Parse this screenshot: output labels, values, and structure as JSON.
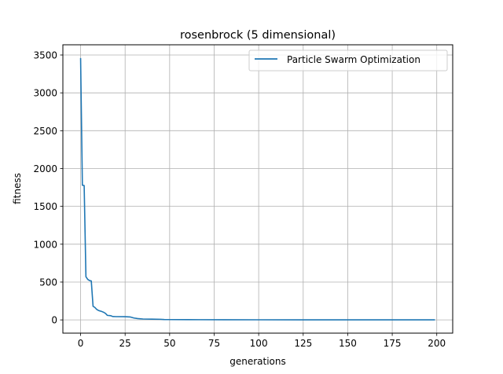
{
  "colors": {
    "series": "#1f77b4",
    "grid": "#b0b0b0",
    "axis": "#000000",
    "legend_border": "#cccccc"
  },
  "chart_data": {
    "type": "line",
    "title": "rosenbrock (5 dimensional)",
    "xlabel": "generations",
    "ylabel": "fitness",
    "xlim": [
      -9.95,
      208.95
    ],
    "ylim": [
      -175,
      3635
    ],
    "xticks": [
      0,
      25,
      50,
      75,
      100,
      125,
      150,
      175,
      200
    ],
    "yticks": [
      0,
      500,
      1000,
      1500,
      2000,
      2500,
      3000,
      3500
    ],
    "grid": true,
    "legend_position": "top-right",
    "series": [
      {
        "name": "Particle Swarm Optimization",
        "points": [
          [
            0,
            3460
          ],
          [
            1,
            1780
          ],
          [
            2,
            1775
          ],
          [
            3,
            570
          ],
          [
            4,
            535
          ],
          [
            5,
            520
          ],
          [
            6,
            515
          ],
          [
            7,
            180
          ],
          [
            8,
            165
          ],
          [
            9,
            140
          ],
          [
            10,
            125
          ],
          [
            12,
            110
          ],
          [
            13,
            100
          ],
          [
            14,
            85
          ],
          [
            15,
            60
          ],
          [
            17,
            55
          ],
          [
            18,
            45
          ],
          [
            20,
            43
          ],
          [
            25,
            42
          ],
          [
            28,
            38
          ],
          [
            30,
            25
          ],
          [
            32,
            18
          ],
          [
            35,
            12
          ],
          [
            40,
            10
          ],
          [
            45,
            8
          ],
          [
            47,
            5
          ],
          [
            50,
            4
          ],
          [
            60,
            3
          ],
          [
            80,
            2
          ],
          [
            100,
            1.5
          ],
          [
            150,
            1
          ],
          [
            199,
            1
          ]
        ]
      }
    ]
  }
}
